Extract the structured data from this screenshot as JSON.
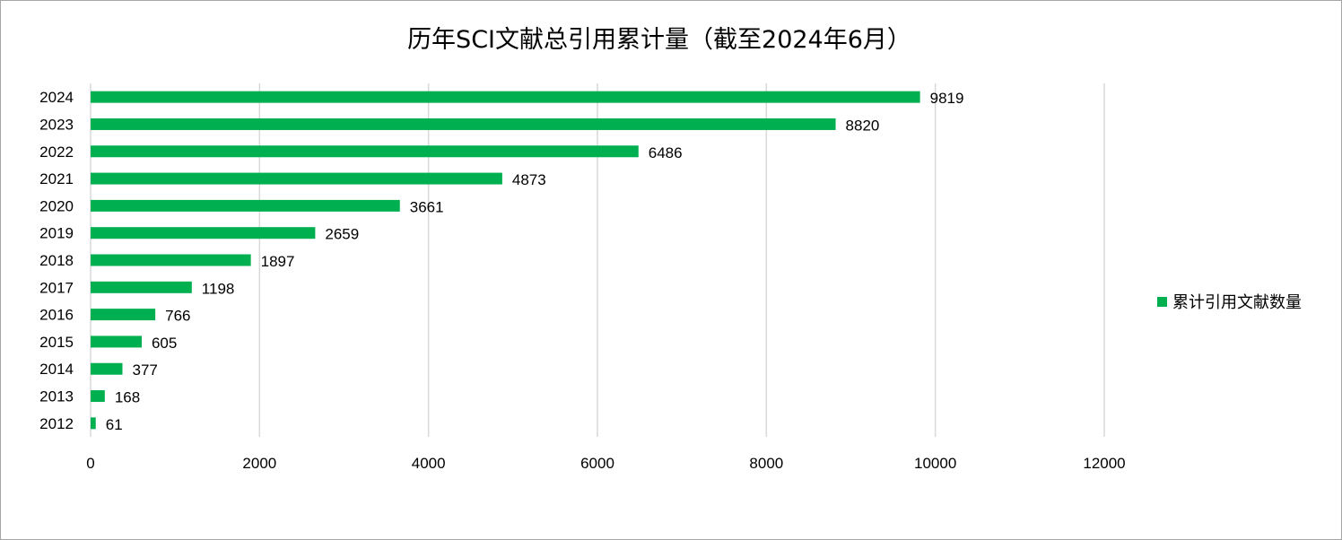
{
  "chart_data": {
    "type": "bar",
    "orientation": "horizontal",
    "title": "历年SCI文献总引用累计量（截至2024年6月）",
    "categories": [
      "2024",
      "2023",
      "2022",
      "2021",
      "2020",
      "2019",
      "2018",
      "2017",
      "2016",
      "2015",
      "2014",
      "2013",
      "2012"
    ],
    "series": [
      {
        "name": "累计引用文献数量",
        "values": [
          9819,
          8820,
          6486,
          4873,
          3661,
          2659,
          1897,
          1198,
          766,
          605,
          377,
          168,
          61
        ],
        "color": "#00B050"
      }
    ],
    "xlim": [
      0,
      12000
    ],
    "xticks": [
      0,
      2000,
      4000,
      6000,
      8000,
      10000,
      12000
    ],
    "grid": true,
    "legend_position": "right",
    "data_labels": true
  }
}
